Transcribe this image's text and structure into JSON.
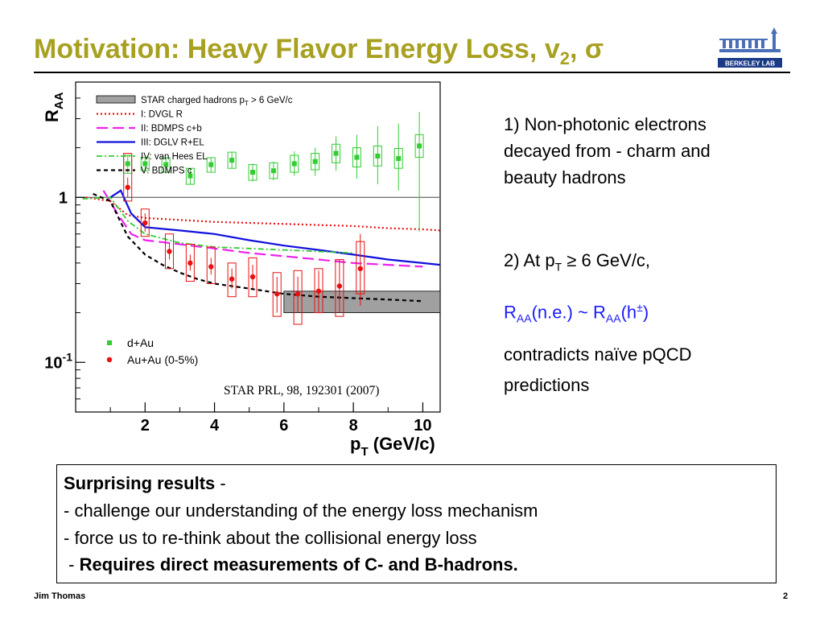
{
  "slide": {
    "title_main": "Motivation:  Heavy Flavor Energy Loss,  v",
    "title_sub": "2",
    "title_tail": ",  σ",
    "logo_text": "BERKELEY LAB",
    "citation": "STAR PRL, 98, 192301 (2007)",
    "right": {
      "p1": "1) Non-photonic electrons decayed from  - charm and beauty hadrons",
      "p2_a": "2) At p",
      "p2_sub": "T",
      "p2_b": " ≥ 6 GeV/c,",
      "p3_a": "R",
      "p3_sub1": "AA",
      "p3_b": "(n.e.) ~ R",
      "p3_sub2": "AA",
      "p3_c": "(h",
      "p3_sup": "±",
      "p3_d": ")",
      "p4": "contradicts naïve pQCD predictions"
    },
    "box": {
      "heading": "Surprising results",
      "heading_tail": " -",
      "line1": " - challenge our understanding of the energy loss mechanism",
      "line2": " - force us to re-think about the collisional energy loss",
      "line3_prefix": " - ",
      "line3_bold": "Requires direct measurements of C- and B-hadrons."
    },
    "footer_left": "Jim Thomas",
    "footer_right": "2"
  },
  "colors": {
    "title": "#a8a020",
    "dAu": "#33cc33",
    "AuAu": "#e81010",
    "dvgl": "#e81010",
    "bdmps_cb": "#ee22ee",
    "dglv": "#1010dd",
    "vanhees": "#33cc33",
    "bdmps_c": "#000000",
    "band": "#a0a0a0",
    "highlight": "#1a1aff"
  },
  "chart_data": {
    "type": "scatter",
    "xlabel": "p",
    "xlabel_sub": "T",
    "xlabel_tail": " (GeV/c)",
    "ylabel": "R",
    "ylabel_sub": "AA",
    "xlim": [
      0,
      10.5
    ],
    "ylim": [
      0.05,
      5
    ],
    "yscale": "log",
    "x_ticks": [
      2,
      4,
      6,
      8,
      10
    ],
    "y_ticks": [
      {
        "value": 1,
        "label": "1"
      },
      {
        "value": 0.1,
        "label": "10",
        "sup": "-1"
      }
    ],
    "reference_line": 1,
    "legend_top": [
      {
        "name": "STAR charged hadrons p",
        "sub": "T",
        "tail": " > 6 GeV/c",
        "style": "band"
      },
      {
        "name": "I: DVGL R",
        "style": "dotted",
        "color": "dvgl"
      },
      {
        "name": "II: BDMPS c+b",
        "style": "dashed",
        "color": "bdmps_cb"
      },
      {
        "name": "III: DGLV R+EL",
        "style": "solid",
        "color": "dglv"
      },
      {
        "name": "IV: van Hees EL",
        "style": "dashdot",
        "color": "vanhees"
      },
      {
        "name": "V: BDMPS c",
        "style": "dashed-short",
        "color": "bdmps_c"
      }
    ],
    "legend_bottom": [
      {
        "name": "d+Au",
        "marker": "square",
        "color": "dAu"
      },
      {
        "name": "Au+Au (0-5%)",
        "marker": "circle",
        "color": "AuAu"
      }
    ],
    "band": {
      "x": [
        6,
        10.5
      ],
      "y": [
        0.2,
        0.27
      ]
    },
    "series": [
      {
        "name": "d+Au",
        "marker": "square",
        "color": "dAu",
        "points": [
          {
            "x": 1.5,
            "y": 1.6,
            "lo": 1.4,
            "hi": 1.8,
            "syslo": 1.4,
            "syshi": 1.8
          },
          {
            "x": 2.0,
            "y": 1.6,
            "lo": 1.45,
            "hi": 1.75,
            "syslo": 1.45,
            "syshi": 1.75
          },
          {
            "x": 2.6,
            "y": 1.58,
            "lo": 1.42,
            "hi": 1.74,
            "syslo": 1.42,
            "syshi": 1.74
          },
          {
            "x": 3.3,
            "y": 1.35,
            "lo": 1.2,
            "hi": 1.5,
            "syslo": 1.2,
            "syshi": 1.5
          },
          {
            "x": 3.9,
            "y": 1.58,
            "lo": 1.42,
            "hi": 1.74,
            "syslo": 1.42,
            "syshi": 1.74
          },
          {
            "x": 4.5,
            "y": 1.68,
            "lo": 1.5,
            "hi": 1.88,
            "syslo": 1.5,
            "syshi": 1.88
          },
          {
            "x": 5.1,
            "y": 1.42,
            "lo": 1.25,
            "hi": 1.6,
            "syslo": 1.27,
            "syshi": 1.58
          },
          {
            "x": 5.7,
            "y": 1.45,
            "lo": 1.27,
            "hi": 1.65,
            "syslo": 1.3,
            "syshi": 1.62
          },
          {
            "x": 6.3,
            "y": 1.6,
            "lo": 1.35,
            "hi": 1.9,
            "syslo": 1.42,
            "syshi": 1.8
          },
          {
            "x": 6.9,
            "y": 1.65,
            "lo": 1.35,
            "hi": 2.0,
            "syslo": 1.47,
            "syshi": 1.85
          },
          {
            "x": 7.5,
            "y": 1.85,
            "lo": 1.45,
            "hi": 2.35,
            "syslo": 1.62,
            "syshi": 2.1
          },
          {
            "x": 8.1,
            "y": 1.75,
            "lo": 1.3,
            "hi": 2.4,
            "syslo": 1.53,
            "syshi": 2.0
          },
          {
            "x": 8.7,
            "y": 1.78,
            "lo": 1.2,
            "hi": 2.7,
            "syslo": 1.55,
            "syshi": 2.05
          },
          {
            "x": 9.3,
            "y": 1.72,
            "lo": 1.1,
            "hi": 2.8,
            "syslo": 1.5,
            "syshi": 1.98
          },
          {
            "x": 9.9,
            "y": 2.05,
            "lo": 0.62,
            "hi": 3.3,
            "syslo": 1.75,
            "syshi": 2.4
          }
        ]
      },
      {
        "name": "Au+Au (0-5%)",
        "marker": "circle",
        "color": "AuAu",
        "points": [
          {
            "x": 1.5,
            "y": 1.15,
            "lo": 1.0,
            "hi": 1.32,
            "syslo": 0.95,
            "syshi": 1.85
          },
          {
            "x": 2.0,
            "y": 0.7,
            "lo": 0.62,
            "hi": 0.8,
            "syslo": 0.58,
            "syshi": 0.85
          },
          {
            "x": 2.7,
            "y": 0.47,
            "lo": 0.42,
            "hi": 0.53,
            "syslo": 0.37,
            "syshi": 0.6
          },
          {
            "x": 3.3,
            "y": 0.4,
            "lo": 0.36,
            "hi": 0.45,
            "syslo": 0.31,
            "syshi": 0.52
          },
          {
            "x": 3.9,
            "y": 0.38,
            "lo": 0.34,
            "hi": 0.43,
            "syslo": 0.3,
            "syshi": 0.5
          },
          {
            "x": 4.5,
            "y": 0.32,
            "lo": 0.28,
            "hi": 0.37,
            "syslo": 0.25,
            "syshi": 0.4
          },
          {
            "x": 5.1,
            "y": 0.33,
            "lo": 0.28,
            "hi": 0.39,
            "syslo": 0.25,
            "syshi": 0.43
          },
          {
            "x": 5.8,
            "y": 0.26,
            "lo": 0.2,
            "hi": 0.33,
            "syslo": 0.19,
            "syshi": 0.35
          },
          {
            "x": 6.4,
            "y": 0.26,
            "lo": 0.2,
            "hi": 0.33,
            "syslo": 0.17,
            "syshi": 0.36
          },
          {
            "x": 7.0,
            "y": 0.27,
            "lo": 0.2,
            "hi": 0.36,
            "syslo": 0.2,
            "syshi": 0.37
          },
          {
            "x": 7.6,
            "y": 0.29,
            "lo": 0.2,
            "hi": 0.42,
            "syslo": 0.19,
            "syshi": 0.42
          },
          {
            "x": 8.2,
            "y": 0.37,
            "lo": 0.22,
            "hi": 0.6,
            "syslo": 0.26,
            "syshi": 0.54
          }
        ]
      }
    ],
    "curves": [
      {
        "name": "I: DVGL R",
        "color": "dvgl",
        "style": "dotted",
        "x": [
          0.3,
          1.0,
          1.5,
          2.0,
          3.0,
          4.0,
          5.0,
          6.0,
          7.0,
          8.0,
          9.0,
          10.0,
          10.5
        ],
        "y": [
          1.0,
          0.95,
          0.78,
          0.75,
          0.73,
          0.71,
          0.7,
          0.69,
          0.68,
          0.67,
          0.65,
          0.64,
          0.63
        ]
      },
      {
        "name": "II: BDMPS c+b",
        "color": "bdmps_cb",
        "style": "dashed",
        "x": [
          0.8,
          1.2,
          1.6,
          2.0,
          3.0,
          4.0,
          5.0,
          6.0,
          7.0,
          8.0,
          9.0,
          10.0
        ],
        "y": [
          1.1,
          0.8,
          0.6,
          0.55,
          0.52,
          0.49,
          0.46,
          0.44,
          0.42,
          0.4,
          0.39,
          0.38
        ]
      },
      {
        "name": "III: DGLV R+EL",
        "color": "dglv",
        "style": "solid",
        "x": [
          1.0,
          1.3,
          1.6,
          2.0,
          3.0,
          4.0,
          5.0,
          6.0,
          7.0,
          8.0,
          9.0,
          10.0,
          10.5
        ],
        "y": [
          1.0,
          1.1,
          0.8,
          0.66,
          0.63,
          0.6,
          0.55,
          0.51,
          0.48,
          0.45,
          0.42,
          0.4,
          0.39
        ]
      },
      {
        "name": "IV: van Hees EL",
        "color": "vanhees",
        "style": "dashdot",
        "x": [
          0.2,
          1.0,
          1.5,
          2.0,
          3.0,
          4.0,
          5.0,
          6.0,
          7.0,
          8.0
        ],
        "y": [
          0.98,
          1.0,
          0.72,
          0.6,
          0.53,
          0.5,
          0.49,
          0.48,
          0.47,
          0.46
        ]
      },
      {
        "name": "V: BDMPS c",
        "color": "bdmps_c",
        "style": "dashed-short",
        "x": [
          0.5,
          1.0,
          1.5,
          2.0,
          2.5,
          3.0,
          3.5,
          4.0,
          5.0,
          6.0,
          7.0,
          8.0,
          9.0,
          10.0
        ],
        "y": [
          1.05,
          0.95,
          0.58,
          0.45,
          0.39,
          0.35,
          0.32,
          0.3,
          0.28,
          0.26,
          0.25,
          0.245,
          0.24,
          0.235
        ]
      }
    ]
  }
}
